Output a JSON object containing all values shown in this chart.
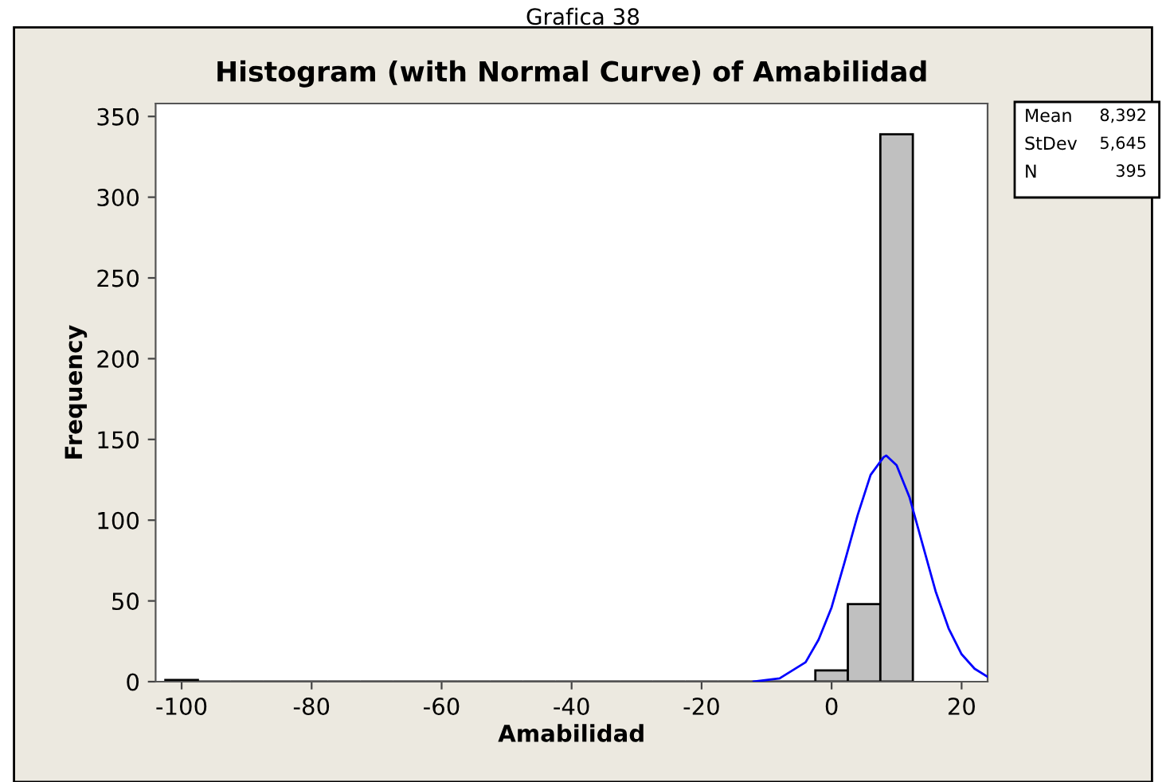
{
  "chart_data": {
    "type": "histogram",
    "title": "Histogram (with Normal Curve) of Amabilidad",
    "xlabel": "Amabilidad",
    "ylabel": "Frequency",
    "bins": [
      -102.5,
      -97.5,
      -92.5,
      -87.5,
      -82.5,
      -77.5,
      -72.5,
      -67.5,
      -62.5,
      -57.5,
      -52.5,
      -47.5,
      -42.5,
      -37.5,
      -32.5,
      -27.5,
      -22.5,
      -17.5,
      -12.5,
      -7.5,
      -2.5,
      2.5,
      7.5,
      12.5
    ],
    "values": [
      1,
      0,
      0,
      0,
      0,
      0,
      0,
      0,
      0,
      0,
      0,
      0,
      0,
      0,
      0,
      0,
      0,
      0,
      0,
      0,
      7,
      48,
      339
    ],
    "color": "#c0c0c0",
    "series": [
      {
        "type": "line",
        "color": "#0000ff",
        "x": [
          -12,
          -8,
          -4,
          -2,
          0,
          2,
          4,
          6,
          8,
          8.4,
          10,
          12,
          14,
          16,
          18,
          20,
          22,
          24
        ],
        "values": [
          0,
          2,
          12,
          26,
          46,
          74,
          103,
          128,
          139,
          140,
          134,
          114,
          85,
          56,
          33,
          17,
          8,
          3
        ]
      }
    ],
    "xlim": [
      -104,
      24
    ],
    "ylim": [
      0,
      358
    ],
    "xticks": [
      -100,
      -80,
      -60,
      -40,
      -20,
      0,
      20
    ],
    "yticks": [
      0,
      50,
      100,
      150,
      200,
      250,
      300,
      350
    ],
    "grid": false,
    "legend": false,
    "annotations": [
      "Grafica 38",
      "Mean 8,392\nStDev 5,645\nN 395"
    ]
  }
}
